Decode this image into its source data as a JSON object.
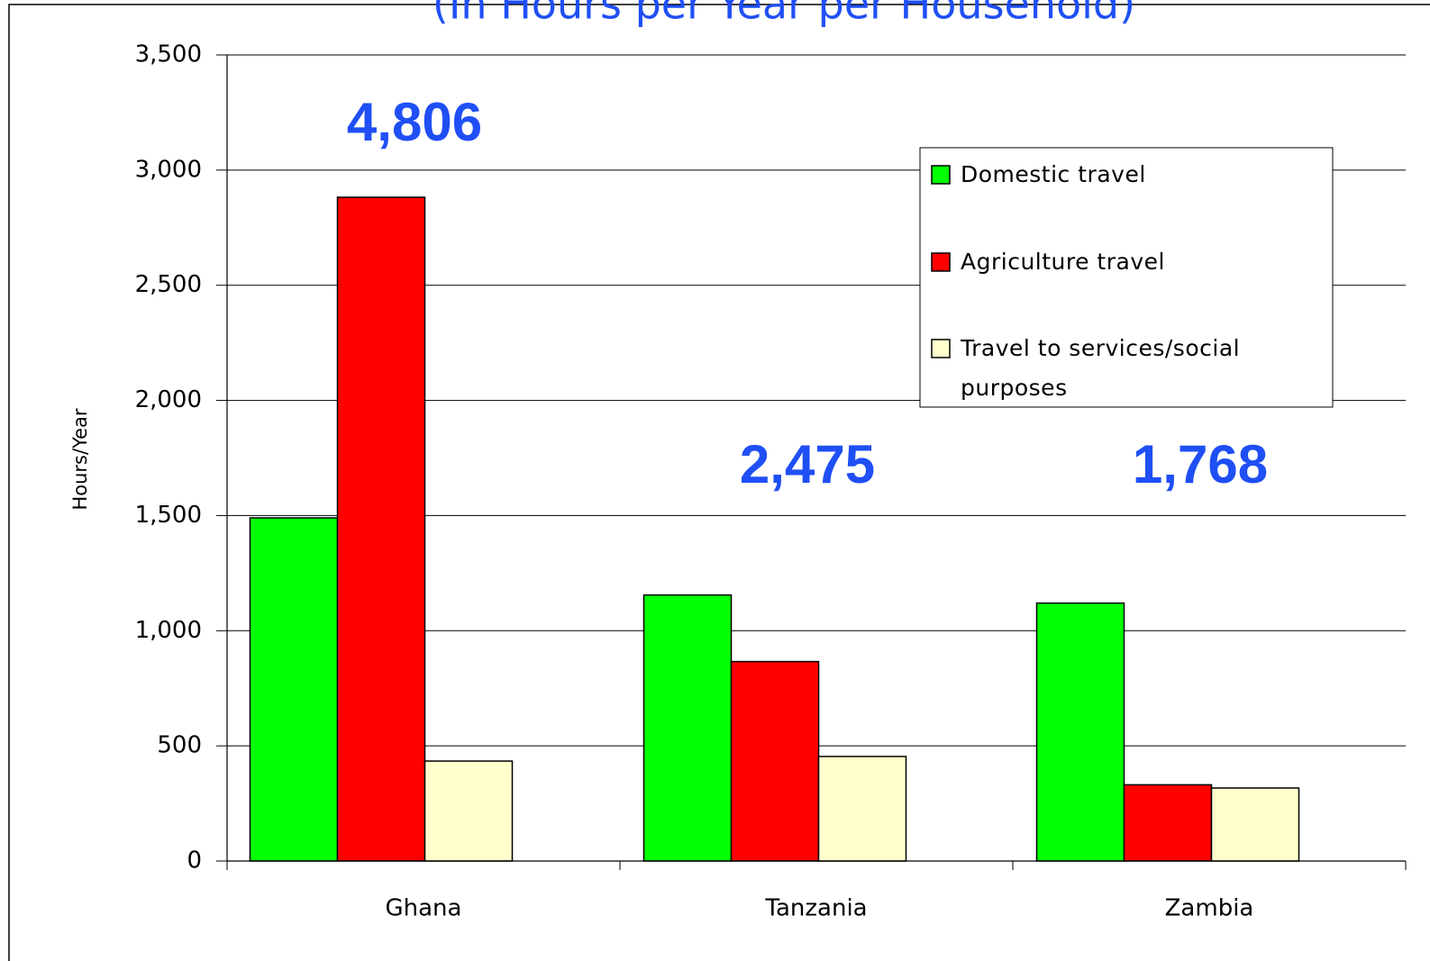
{
  "chart_data": {
    "type": "bar",
    "title": "(In Hours per Year per Household)",
    "y_label": "Hours/Year",
    "categories": [
      "Ghana",
      "Tanzania",
      "Zambia"
    ],
    "series": [
      {
        "name": "Domestic travel",
        "color": "#00ff00",
        "values": [
          1490,
          1155,
          1120
        ]
      },
      {
        "name": "Agriculture travel",
        "color": "#ff0000",
        "values": [
          2882,
          866,
          331
        ]
      },
      {
        "name": "Travel to services/social purposes",
        "color": "#ffffcc",
        "values": [
          434,
          454,
          317
        ]
      }
    ],
    "annotations": [
      "4,806",
      "2,475",
      "1,768"
    ],
    "ylim": [
      0,
      3500
    ],
    "yticks": [
      0,
      500,
      {
        "value": 1000,
        "label": "1,000"
      },
      {
        "value": 1500,
        "label": "1,500"
      },
      {
        "value": 2000,
        "label": "2,000"
      },
      {
        "value": 2500,
        "label": "2,500"
      },
      {
        "value": 3000,
        "label": "3,000"
      },
      {
        "value": 3500,
        "label": "3,500"
      }
    ],
    "grid": true,
    "legend": "upper right"
  }
}
